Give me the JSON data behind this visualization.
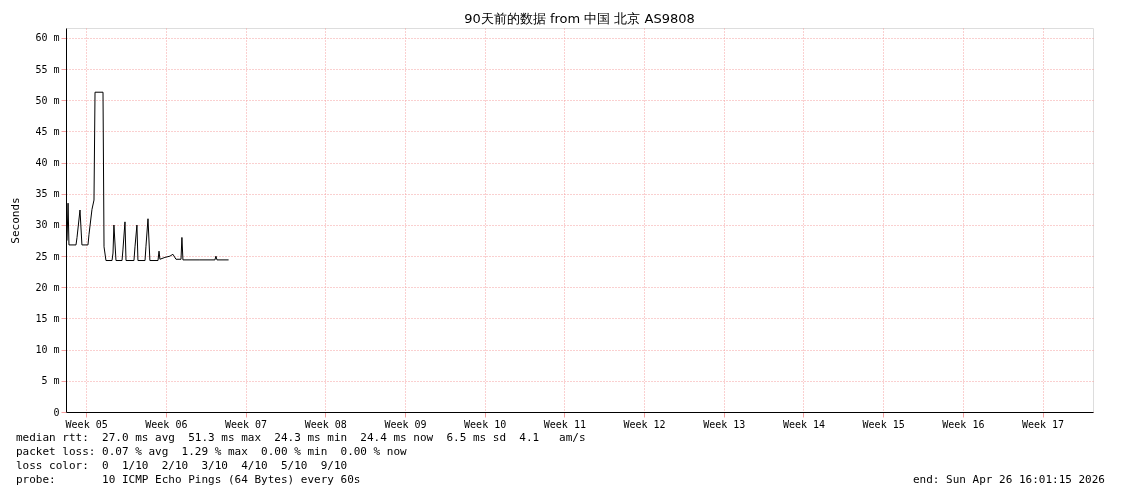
{
  "chart_data": {
    "type": "line",
    "title": "90天前的数据 from 中国 北京 AS9808",
    "ylabel": "Seconds",
    "x": [
      "2026-01-27T19:40",
      "2026-01-27T21:50",
      "2026-01-27T23:45",
      "2026-01-28T14:35",
      "2026-01-28T16:45",
      "2026-01-28T23:00",
      "2026-01-29T03:05",
      "2026-01-29T15:50",
      "2026-01-29T18:00",
      "2026-01-30T00:15",
      "2026-01-30T04:30",
      "2026-01-30T06:40",
      "2026-01-30T23:30",
      "2026-01-31T01:40",
      "2026-01-31T05:45",
      "2026-01-31T18:30",
      "2026-01-31T20:35",
      "2026-01-31T22:30",
      "2026-02-01T02:50",
      "2026-02-01T15:35",
      "2026-02-01T17:30",
      "2026-02-01T21:50",
      "2026-02-02T00:00",
      "2026-02-02T16:45",
      "2026-02-02T18:55",
      "2026-02-02T23:00",
      "2026-02-03T01:10",
      "2026-02-03T16:05",
      "2026-02-03T18:00",
      "2026-02-03T22:20",
      "2026-02-04T02:20",
      "2026-02-04T19:25",
      "2026-02-04T21:35",
      "2026-02-04T23:30",
      "2026-02-05T10:05",
      "2026-02-05T20:35",
      "2026-02-06T02:50",
      "2026-02-06T09:20",
      "2026-02-06T17:45",
      "2026-02-06T19:55",
      "2026-02-06T21:50",
      "2026-02-07T00:00",
      "2026-02-08T11:45",
      "2026-02-09T19:25",
      "2026-02-09T21:35",
      "2026-02-09T23:45",
      "2026-02-11T00:15"
    ],
    "series": [
      {
        "color": "#000000",
        "values": [
          27.5,
          33.5,
          26.8,
          26.8,
          28,
          32.4,
          26.8,
          26.8,
          28.5,
          32.5,
          34,
          51.3,
          51.3,
          26.5,
          24.3,
          24.3,
          25.5,
          30,
          24.3,
          24.3,
          26,
          30.5,
          24.3,
          24.3,
          26.5,
          30,
          24.3,
          24.3,
          26.5,
          31,
          24.3,
          24.3,
          25.8,
          24.5,
          24.8,
          25,
          25.3,
          24.5,
          24.5,
          24.5,
          28,
          24.4,
          24.4,
          24.4,
          25,
          24.4,
          24.4
        ]
      }
    ],
    "xlim": [
      "2026-01-27T17:30",
      "2026-04-27T22:20"
    ],
    "ylim": [
      0,
      61.6
    ],
    "xticks": [
      {
        "value": "2026-01-29T12:00",
        "label": "Week 05"
      },
      {
        "value": "2026-02-05T12:00",
        "label": "Week 06"
      },
      {
        "value": "2026-02-12T12:00",
        "label": "Week 07"
      },
      {
        "value": "2026-02-19T12:00",
        "label": "Week 08"
      },
      {
        "value": "2026-02-26T12:00",
        "label": "Week 09"
      },
      {
        "value": "2026-03-05T12:00",
        "label": "Week 10"
      },
      {
        "value": "2026-03-12T12:00",
        "label": "Week 11"
      },
      {
        "value": "2026-03-19T12:00",
        "label": "Week 12"
      },
      {
        "value": "2026-03-26T12:00",
        "label": "Week 13"
      },
      {
        "value": "2026-04-02T12:00",
        "label": "Week 14"
      },
      {
        "value": "2026-04-09T12:00",
        "label": "Week 15"
      },
      {
        "value": "2026-04-16T12:00",
        "label": "Week 16"
      },
      {
        "value": "2026-04-23T12:00",
        "label": "Week 17"
      }
    ],
    "yticks": [
      0,
      {
        "value": 5,
        "label": "5 m"
      },
      {
        "value": 10,
        "label": "10 m"
      },
      {
        "value": 15,
        "label": "15 m"
      },
      {
        "value": 20,
        "label": "20 m"
      },
      {
        "value": 25,
        "label": "25 m"
      },
      {
        "value": 30,
        "label": "30 m"
      },
      {
        "value": 35,
        "label": "35 m"
      },
      {
        "value": 40,
        "label": "40 m"
      },
      {
        "value": 45,
        "label": "45 m"
      },
      {
        "value": 50,
        "label": "50 m"
      },
      {
        "value": 55,
        "label": "55 m"
      },
      {
        "value": 60,
        "label": "60 m"
      }
    ],
    "grid": true,
    "line_style": "solid",
    "annotations": [
      "median rtt:  27.0 ms avg  51.3 ms max  24.3 ms min  24.4 ms now  6.5 ms sd  4.1   am/s",
      "packet loss: 0.07 % avg  1.29 % max  0.00 % min  0.00 % now",
      "loss color:  0  1/10  2/10  3/10  4/10  5/10  9/10",
      "probe:       10 ICMP Echo Pings (64 Bytes) every 60s",
      "end: Sun Apr 26 16:01:15 2026"
    ]
  }
}
